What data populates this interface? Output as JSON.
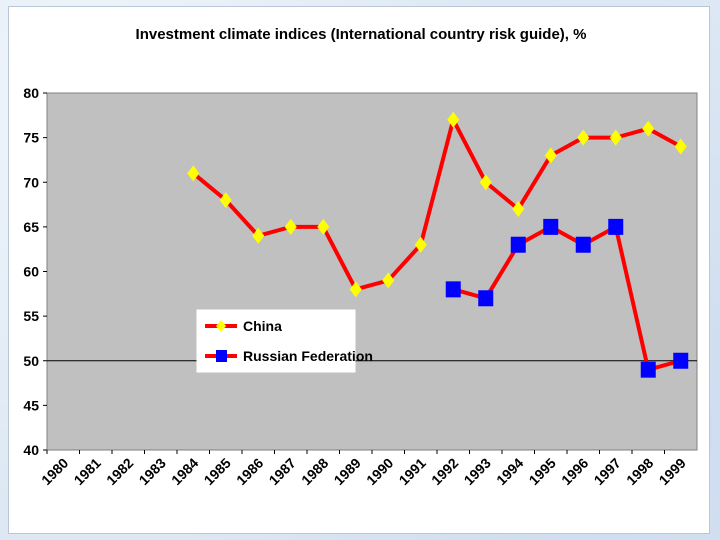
{
  "chart_data": {
    "type": "line",
    "title": "Investment climate indices (International country risk guide), %",
    "xlabel": "",
    "ylabel": "",
    "categories": [
      "1980",
      "1981",
      "1982",
      "1983",
      "1984",
      "1985",
      "1986",
      "1987",
      "1988",
      "1989",
      "1990",
      "1991",
      "1992",
      "1993",
      "1994",
      "1995",
      "1996",
      "1997",
      "1998",
      "1999"
    ],
    "ylim": [
      40,
      80
    ],
    "yticks": [
      40,
      45,
      50,
      55,
      60,
      65,
      70,
      75,
      80
    ],
    "grid": false,
    "reference_line": 50,
    "plot_background": "#c0c0c0",
    "legend_position": "center-left",
    "series": [
      {
        "name": "China",
        "color": "#ff0000",
        "marker": "diamond",
        "marker_color": "#ffff00",
        "values": [
          null,
          null,
          null,
          null,
          71,
          68,
          64,
          65,
          65,
          58,
          59,
          63,
          77,
          70,
          67,
          73,
          75,
          75,
          76,
          74
        ]
      },
      {
        "name": "Russian Federation",
        "color": "#ff0000",
        "marker": "square",
        "marker_color": "#0000ff",
        "values": [
          null,
          null,
          null,
          null,
          null,
          null,
          null,
          null,
          null,
          null,
          null,
          null,
          58,
          57,
          63,
          65,
          63,
          65,
          49,
          50
        ]
      }
    ]
  }
}
